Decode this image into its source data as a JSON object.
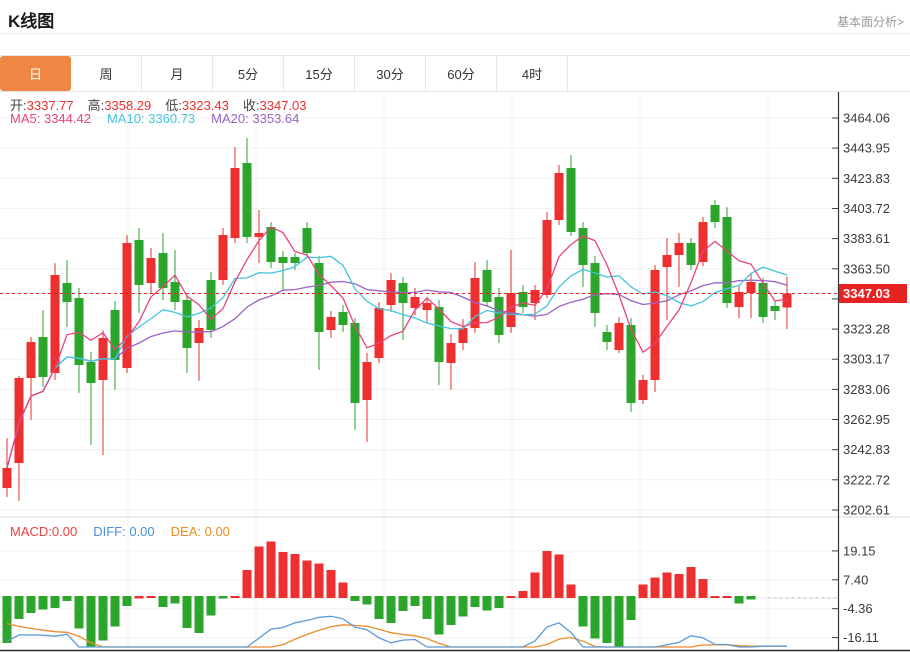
{
  "header": {
    "title": "K线图",
    "link": "基本面分析>"
  },
  "tabs": {
    "items": [
      "日",
      "周",
      "月",
      "5分",
      "15分",
      "30分",
      "60分",
      "4时"
    ],
    "active_index": 0
  },
  "quote": {
    "open_label": "开:",
    "open": "3337.77",
    "high_label": "高:",
    "high": "3358.29",
    "low_label": "低:",
    "low": "3323.43",
    "close_label": "收:",
    "close": "3347.03"
  },
  "ma": {
    "ma5_label": "MA5:",
    "ma5": "3344.42",
    "ma10_label": "MA10:",
    "ma10": "3360.73",
    "ma20_label": "MA20:",
    "ma20": "3353.64"
  },
  "macd_header": {
    "macd_label": "MACD:",
    "macd": "0.00",
    "diff_label": "DIFF:",
    "diff": "0.00",
    "dea_label": "DEA:",
    "dea": "0.00"
  },
  "colors": {
    "up": "#ed2f2f",
    "down": "#2ca52c",
    "accent_tab": "#ee8743",
    "ma5": "#e8437e",
    "ma10": "#45c5dd",
    "ma20": "#9a63c4",
    "diff_line": "#5b9bd5",
    "dea_line": "#ed8b2d",
    "price_line": "#e62222",
    "tag_bg": "#e62222",
    "grid": "#f0f0f0",
    "axis": "#333333"
  },
  "chart_data": {
    "type": "candlestick+macd-histogram",
    "period": "日",
    "current_price": 3347.03,
    "price_axis": {
      "values": [
        3464.06,
        3443.95,
        3423.83,
        3403.72,
        3383.61,
        3363.5,
        3343.39,
        3323.28,
        3303.17,
        3283.06,
        3262.95,
        3242.83,
        3222.72,
        3202.61
      ],
      "labels": [
        "3464.06",
        "3443.95",
        "3423.83",
        "3403.72",
        "3383.61",
        "3363.50",
        "",
        "3323.28",
        "3303.17",
        "3283.06",
        "3262.95",
        "3242.83",
        "3222.72",
        "3202.61"
      ],
      "current_price_label": "3347.03"
    },
    "macd_axis": {
      "values": [
        19.15,
        7.4,
        -4.36,
        -16.11
      ],
      "labels": [
        "19.15",
        "7.40",
        "-4.36",
        "-16.11"
      ]
    },
    "candles_ohlc": [
      [
        3217.3,
        3250.6,
        3211.3,
        3230.6
      ],
      [
        3233.9,
        3292.0,
        3208.6,
        3290.6
      ],
      [
        3290.6,
        3318.0,
        3262.7,
        3314.7
      ],
      [
        3318.0,
        3336.0,
        3284.6,
        3291.3
      ],
      [
        3294.0,
        3367.3,
        3289.3,
        3359.3
      ],
      [
        3354.0,
        3369.3,
        3324.6,
        3341.3
      ],
      [
        3344.0,
        3350.7,
        3280.6,
        3299.3
      ],
      [
        3301.3,
        3308.0,
        3246.0,
        3287.3
      ],
      [
        3289.3,
        3322.6,
        3239.3,
        3317.3
      ],
      [
        3336.0,
        3342.0,
        3282.7,
        3302.7
      ],
      [
        3297.3,
        3386.0,
        3294.0,
        3380.7
      ],
      [
        3382.7,
        3390.7,
        3334.0,
        3352.7
      ],
      [
        3354.0,
        3377.3,
        3347.3,
        3370.7
      ],
      [
        3374.0,
        3387.3,
        3342.7,
        3350.6
      ],
      [
        3354.7,
        3376.0,
        3336.0,
        3341.3
      ],
      [
        3342.7,
        3346.0,
        3294.0,
        3310.7
      ],
      [
        3314.0,
        3329.3,
        3288.7,
        3324.0
      ],
      [
        3356.0,
        3361.3,
        3317.3,
        3322.6
      ],
      [
        3356.0,
        3390.7,
        3352.7,
        3386.0
      ],
      [
        3384.0,
        3444.7,
        3380.6,
        3430.7
      ],
      [
        3434.0,
        3450.7,
        3380.7,
        3384.7
      ],
      [
        3384.7,
        3402.7,
        3367.3,
        3387.3
      ],
      [
        3391.3,
        3394.7,
        3364.0,
        3368.0
      ],
      [
        3371.3,
        3375.3,
        3348.7,
        3367.3
      ],
      [
        3371.3,
        3374.0,
        3362.7,
        3367.3
      ],
      [
        3390.7,
        3394.7,
        3370.7,
        3374.0
      ],
      [
        3367.3,
        3372.0,
        3296.0,
        3321.3
      ],
      [
        3322.7,
        3335.3,
        3317.3,
        3331.3
      ],
      [
        3334.7,
        3339.3,
        3321.3,
        3326.0
      ],
      [
        3327.3,
        3330.7,
        3256.0,
        3274.0
      ],
      [
        3276.0,
        3307.3,
        3248.0,
        3301.3
      ],
      [
        3304.0,
        3341.3,
        3300.6,
        3337.3
      ],
      [
        3339.3,
        3360.7,
        3334.7,
        3356.0
      ],
      [
        3354.0,
        3358.0,
        3316.0,
        3340.7
      ],
      [
        3337.3,
        3350.7,
        3332.7,
        3344.7
      ],
      [
        3336.0,
        3344.7,
        3327.3,
        3340.7
      ],
      [
        3338.0,
        3342.7,
        3286.0,
        3301.3
      ],
      [
        3300.7,
        3320.0,
        3282.7,
        3314.0
      ],
      [
        3314.0,
        3330.0,
        3309.3,
        3324.0
      ],
      [
        3324.0,
        3368.0,
        3320.7,
        3357.3
      ],
      [
        3362.7,
        3369.3,
        3338.0,
        3341.3
      ],
      [
        3344.7,
        3350.7,
        3314.0,
        3319.3
      ],
      [
        3324.7,
        3376.0,
        3320.7,
        3347.3
      ],
      [
        3348.0,
        3352.7,
        3334.0,
        3338.0
      ],
      [
        3340.7,
        3352.7,
        3329.3,
        3349.3
      ],
      [
        3346.0,
        3401.3,
        3344.0,
        3396.0
      ],
      [
        3396.0,
        3432.7,
        3392.7,
        3427.3
      ],
      [
        3430.7,
        3439.4,
        3385.4,
        3388.0
      ],
      [
        3390.7,
        3394.7,
        3351.3,
        3366.0
      ],
      [
        3367.3,
        3372.0,
        3324.7,
        3334.0
      ],
      [
        3321.3,
        3326.0,
        3309.3,
        3314.7
      ],
      [
        3309.3,
        3331.3,
        3307.3,
        3327.3
      ],
      [
        3326.0,
        3330.7,
        3268.0,
        3274.0
      ],
      [
        3276.0,
        3292.7,
        3273.3,
        3289.3
      ],
      [
        3289.3,
        3366.0,
        3281.3,
        3362.7
      ],
      [
        3364.7,
        3384.0,
        3329.3,
        3372.7
      ],
      [
        3372.7,
        3387.3,
        3351.3,
        3380.7
      ],
      [
        3380.7,
        3384.0,
        3362.7,
        3366.0
      ],
      [
        3368.0,
        3398.0,
        3365.3,
        3394.7
      ],
      [
        3406.0,
        3409.3,
        3390.7,
        3394.7
      ],
      [
        3398.0,
        3404.7,
        3337.3,
        3340.7
      ],
      [
        3338.0,
        3352.7,
        3330.7,
        3348.0
      ],
      [
        3347.3,
        3360.7,
        3330.7,
        3354.7
      ],
      [
        3354.0,
        3357.3,
        3327.3,
        3331.3
      ],
      [
        3338.7,
        3342.7,
        3329.3,
        3335.3
      ],
      [
        3337.77,
        3358.29,
        3323.43,
        3347.03
      ]
    ],
    "macd_bars": [
      [
        -19.1,
        "g"
      ],
      [
        -9.3,
        "g"
      ],
      [
        -6.9,
        "g"
      ],
      [
        -5.4,
        "g"
      ],
      [
        -4.9,
        "g"
      ],
      [
        -2.0,
        "g"
      ],
      [
        -13.2,
        "g"
      ],
      [
        -21.0,
        "g"
      ],
      [
        -18.1,
        "g"
      ],
      [
        -12.3,
        "g"
      ],
      [
        -4.0,
        "g"
      ],
      [
        -1.0,
        "r"
      ],
      [
        -0.5,
        "r"
      ],
      [
        -4.4,
        "g"
      ],
      [
        -3.0,
        "g"
      ],
      [
        -13.0,
        "g"
      ],
      [
        -15.0,
        "g"
      ],
      [
        -8.0,
        "g"
      ],
      [
        -1.0,
        "g"
      ],
      [
        0.5,
        "r"
      ],
      [
        11.3,
        "r"
      ],
      [
        21.0,
        "r"
      ],
      [
        23.0,
        "r"
      ],
      [
        18.6,
        "r"
      ],
      [
        17.8,
        "r"
      ],
      [
        15.2,
        "r"
      ],
      [
        14.0,
        "r"
      ],
      [
        11.3,
        "r"
      ],
      [
        6.4,
        "r"
      ],
      [
        -2.0,
        "g"
      ],
      [
        -3.5,
        "g"
      ],
      [
        -9.3,
        "g"
      ],
      [
        -11.0,
        "g"
      ],
      [
        -6.0,
        "g"
      ],
      [
        -4.0,
        "g"
      ],
      [
        -9.3,
        "g"
      ],
      [
        -15.7,
        "g"
      ],
      [
        -11.8,
        "g"
      ],
      [
        -8.3,
        "g"
      ],
      [
        -4.4,
        "g"
      ],
      [
        -5.9,
        "g"
      ],
      [
        -4.9,
        "g"
      ],
      [
        -0.5,
        "r"
      ],
      [
        2.9,
        "r"
      ],
      [
        10.3,
        "r"
      ],
      [
        19.1,
        "r"
      ],
      [
        17.6,
        "r"
      ],
      [
        5.4,
        "r"
      ],
      [
        -12.3,
        "g"
      ],
      [
        -17.2,
        "g"
      ],
      [
        -19.1,
        "g"
      ],
      [
        -20.6,
        "g"
      ],
      [
        -9.8,
        "g"
      ],
      [
        5.4,
        "r"
      ],
      [
        8.3,
        "r"
      ],
      [
        10.3,
        "r"
      ],
      [
        9.8,
        "r"
      ],
      [
        12.7,
        "r"
      ],
      [
        7.8,
        "r"
      ],
      [
        0.5,
        "r"
      ],
      [
        0.3,
        "r"
      ],
      [
        -3.0,
        "g"
      ],
      [
        -1.5,
        "g"
      ],
      [
        0,
        "r"
      ],
      [
        0,
        "r"
      ],
      [
        0,
        "r"
      ]
    ]
  }
}
